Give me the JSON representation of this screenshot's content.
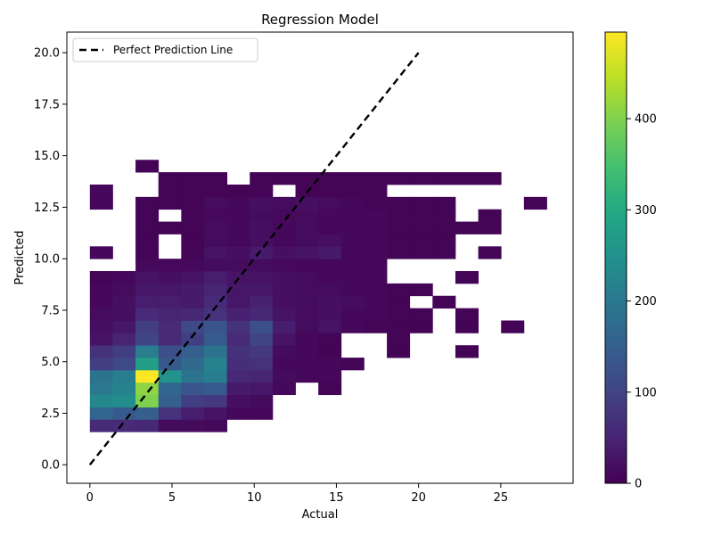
{
  "chart_data": {
    "type": "heatmap",
    "title": "Regression Model",
    "xlabel": "Actual",
    "ylabel": "Predicted",
    "xlim": [
      -1.4,
      29.4
    ],
    "ylim": [
      -0.9,
      21.0
    ],
    "x_ticks": [
      0,
      5,
      10,
      15,
      20,
      25
    ],
    "y_ticks": [
      0.0,
      2.5,
      5.0,
      7.5,
      10.0,
      12.5,
      15.0,
      17.5,
      20.0
    ],
    "x_tick_labels": [
      "0",
      "5",
      "10",
      "15",
      "20",
      "25"
    ],
    "y_tick_labels": [
      "0.0",
      "2.5",
      "5.0",
      "7.5",
      "10.0",
      "12.5",
      "15.0",
      "17.5",
      "20.0"
    ],
    "colormap": "viridis",
    "color_range": [
      0,
      495
    ],
    "colorbar_ticks": [
      0,
      100,
      200,
      300,
      400
    ],
    "colorbar_tick_labels": [
      "0",
      "100",
      "200",
      "300",
      "400"
    ],
    "x_bin_edges": [
      0.0,
      1.39,
      2.78,
      4.17,
      5.56,
      6.95,
      8.34,
      9.73,
      11.12,
      12.51,
      13.9,
      15.29,
      16.68,
      18.07,
      19.46,
      20.85,
      22.24,
      23.63,
      25.02,
      26.41,
      27.8
    ],
    "y_bin_edges": [
      1.6,
      2.2,
      2.8,
      3.4,
      4.0,
      4.6,
      5.2,
      5.8,
      6.4,
      7.0,
      7.6,
      8.2,
      8.8,
      9.4,
      10.0,
      10.6,
      11.2,
      11.8,
      12.4,
      13.0,
      13.6,
      14.2,
      14.8,
      15.4
    ],
    "counts": [
      [
        60,
        60,
        55,
        15,
        15,
        10,
        0,
        0,
        0,
        0,
        0,
        0,
        0,
        0,
        0,
        0,
        0,
        0,
        0,
        0
      ],
      [
        160,
        140,
        150,
        70,
        40,
        25,
        10,
        8,
        0,
        0,
        0,
        0,
        0,
        0,
        0,
        0,
        0,
        0,
        0,
        0
      ],
      [
        230,
        240,
        400,
        150,
        90,
        80,
        20,
        15,
        0,
        0,
        0,
        0,
        0,
        0,
        0,
        0,
        0,
        0,
        0,
        0
      ],
      [
        200,
        220,
        410,
        160,
        130,
        140,
        35,
        30,
        10,
        0,
        5,
        0,
        0,
        0,
        0,
        0,
        0,
        0,
        0,
        0
      ],
      [
        190,
        210,
        495,
        250,
        190,
        210,
        55,
        50,
        15,
        8,
        10,
        0,
        0,
        0,
        0,
        0,
        0,
        0,
        0,
        0
      ],
      [
        90,
        110,
        280,
        140,
        170,
        220,
        65,
        70,
        10,
        8,
        10,
        5,
        0,
        0,
        0,
        0,
        0,
        0,
        0,
        0
      ],
      [
        70,
        90,
        210,
        120,
        150,
        190,
        70,
        80,
        15,
        10,
        5,
        0,
        0,
        5,
        0,
        0,
        5,
        0,
        0,
        0
      ],
      [
        25,
        50,
        100,
        60,
        90,
        140,
        60,
        100,
        25,
        10,
        5,
        0,
        0,
        5,
        0,
        0,
        0,
        0,
        0,
        0
      ],
      [
        20,
        30,
        90,
        60,
        110,
        130,
        70,
        120,
        40,
        15,
        25,
        10,
        5,
        5,
        5,
        0,
        5,
        0,
        5,
        0
      ],
      [
        15,
        20,
        60,
        50,
        55,
        70,
        45,
        55,
        25,
        15,
        20,
        10,
        8,
        5,
        5,
        0,
        5,
        0,
        0,
        0
      ],
      [
        10,
        20,
        40,
        40,
        35,
        60,
        30,
        45,
        20,
        15,
        20,
        15,
        10,
        5,
        0,
        5,
        0,
        0,
        0,
        0
      ],
      [
        10,
        15,
        30,
        30,
        35,
        50,
        30,
        30,
        20,
        15,
        15,
        10,
        10,
        5,
        5,
        0,
        0,
        0,
        0,
        0
      ],
      [
        5,
        10,
        25,
        20,
        25,
        40,
        25,
        25,
        20,
        15,
        10,
        10,
        10,
        0,
        0,
        0,
        5,
        0,
        0,
        0
      ],
      [
        0,
        0,
        10,
        10,
        10,
        15,
        15,
        15,
        10,
        10,
        10,
        10,
        10,
        0,
        0,
        0,
        0,
        0,
        0,
        0
      ],
      [
        10,
        0,
        5,
        0,
        5,
        25,
        20,
        35,
        20,
        25,
        35,
        10,
        10,
        5,
        5,
        5,
        0,
        5,
        0,
        0
      ],
      [
        0,
        0,
        5,
        0,
        5,
        15,
        10,
        20,
        10,
        15,
        20,
        10,
        10,
        5,
        5,
        5,
        0,
        0,
        0,
        0
      ],
      [
        0,
        0,
        5,
        5,
        5,
        15,
        10,
        20,
        10,
        15,
        10,
        10,
        10,
        5,
        5,
        5,
        5,
        5,
        0,
        0
      ],
      [
        0,
        0,
        5,
        0,
        5,
        10,
        10,
        15,
        10,
        15,
        10,
        10,
        10,
        5,
        5,
        5,
        0,
        5,
        0,
        0
      ],
      [
        10,
        0,
        5,
        5,
        5,
        15,
        10,
        20,
        15,
        20,
        15,
        10,
        5,
        5,
        5,
        5,
        0,
        0,
        0,
        5
      ],
      [
        10,
        0,
        0,
        5,
        5,
        5,
        5,
        5,
        0,
        5,
        5,
        5,
        5,
        0,
        0,
        0,
        0,
        0,
        0,
        0
      ],
      [
        0,
        0,
        0,
        5,
        5,
        5,
        0,
        5,
        5,
        5,
        5,
        5,
        5,
        5,
        5,
        5,
        5,
        5,
        0,
        0
      ],
      [
        0,
        0,
        5,
        0,
        0,
        0,
        0,
        0,
        0,
        0,
        0,
        0,
        0,
        0,
        0,
        0,
        0,
        0,
        0,
        0
      ],
      [
        0,
        0,
        0,
        0,
        0,
        0,
        0,
        0,
        0,
        0,
        0,
        0,
        0,
        0,
        0,
        0,
        0,
        0,
        0,
        0
      ]
    ],
    "reference_line": {
      "name": "Perfect Prediction Line",
      "x": [
        0,
        20
      ],
      "y": [
        0,
        20
      ],
      "style": "dashed",
      "color": "#000000"
    },
    "legend": {
      "entries": [
        "Perfect Prediction Line"
      ],
      "placement": "top-left"
    },
    "grid": false
  }
}
